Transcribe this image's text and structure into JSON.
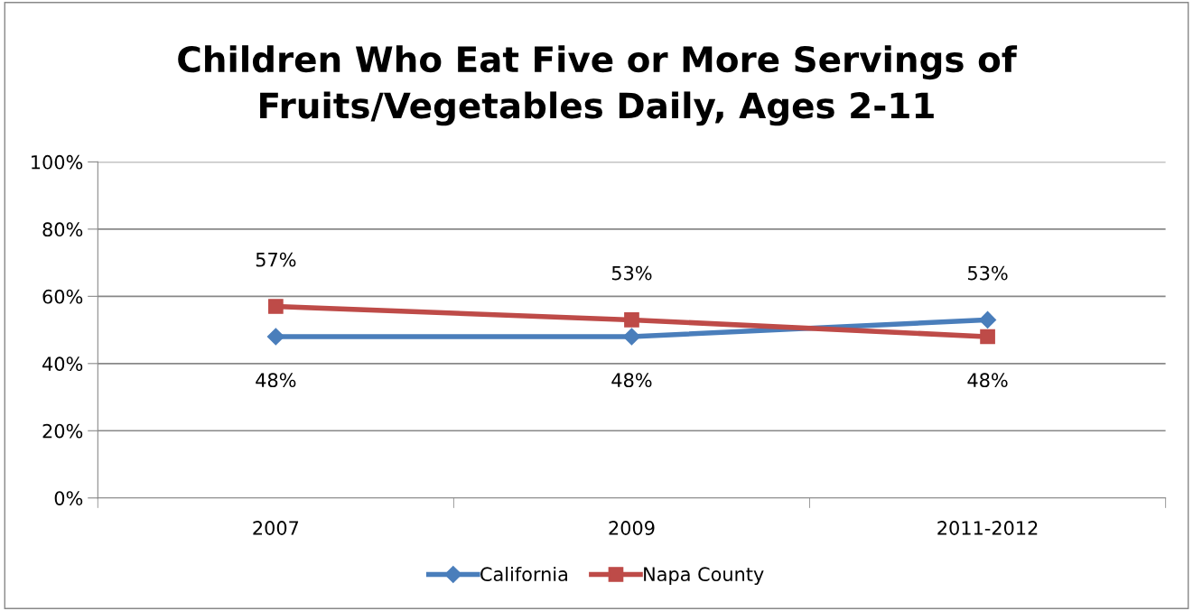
{
  "chart_data": {
    "type": "line",
    "title": "Children Who Eat Five or More Servings of\nFruits/Vegetables Daily, Ages 2-11",
    "categories": [
      "2007",
      "2009",
      "2011-2012"
    ],
    "series": [
      {
        "name": "California",
        "color": "#4a7ebb",
        "marker": "diamond",
        "values": [
          48,
          48,
          53
        ],
        "value_labels": [
          "48%",
          "48%",
          "53%"
        ]
      },
      {
        "name": "Napa County",
        "color": "#be4b48",
        "marker": "square",
        "values": [
          57,
          53,
          48
        ],
        "value_labels": [
          "57%",
          "53%",
          "48%"
        ]
      }
    ],
    "ylim": [
      0,
      100
    ],
    "yticks": [
      {
        "value": 0,
        "label": "0%"
      },
      {
        "value": 20,
        "label": "20%"
      },
      {
        "value": 40,
        "label": "40%"
      },
      {
        "value": 60,
        "label": "60%"
      },
      {
        "value": 80,
        "label": "80%"
      },
      {
        "value": 100,
        "label": "100%"
      }
    ],
    "grid": "y",
    "legend": "bottom",
    "line_style": "solid"
  }
}
